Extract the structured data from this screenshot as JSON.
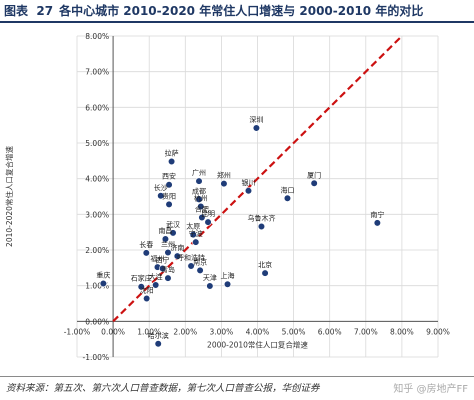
{
  "header": {
    "figure_label": "图表  27",
    "title": "各中心城市 2010-2020 年常住人口增速与 2000-2010 年的对比"
  },
  "footer": {
    "source": "资料来源：第五次、第六次人口普查数据，第七次人口普查公报，华创证券"
  },
  "watermark": "知乎 @房地产FF",
  "colors": {
    "point": "#1f3c78",
    "diagonal": "#cc1111",
    "title": "#1f3864",
    "grid": "#d9d9d9"
  },
  "chart_data": {
    "type": "scatter",
    "xlabel": "2000-2010常住人口复合增速",
    "ylabel": "2010-2020常住人口复合增速",
    "xlim": [
      -1.0,
      9.0
    ],
    "ylim": [
      -1.0,
      8.0
    ],
    "x_ticks": [
      "-1.00%",
      "0.00%",
      "1.00%",
      "2.00%",
      "3.00%",
      "4.00%",
      "5.00%",
      "6.00%",
      "7.00%",
      "8.00%",
      "9.00%"
    ],
    "y_ticks": [
      "-1.00%",
      "0.00%",
      "1.00%",
      "2.00%",
      "3.00%",
      "4.00%",
      "5.00%",
      "6.00%",
      "7.00%",
      "8.00%"
    ],
    "grid": true,
    "legend": "none",
    "reference_line": "y = x (dashed)",
    "points": [
      {
        "label": "深圳",
        "x": 3.97,
        "y": 5.42
      },
      {
        "label": "拉萨",
        "x": 1.62,
        "y": 4.48
      },
      {
        "label": "广州",
        "x": 2.38,
        "y": 3.93
      },
      {
        "label": "郑州",
        "x": 3.07,
        "y": 3.86
      },
      {
        "label": "厦门",
        "x": 5.57,
        "y": 3.87
      },
      {
        "label": "海口",
        "x": 4.83,
        "y": 3.45
      },
      {
        "label": "西安",
        "x": 1.55,
        "y": 3.83
      },
      {
        "label": "长沙",
        "x": 1.32,
        "y": 3.52
      },
      {
        "label": "贵阳",
        "x": 1.55,
        "y": 3.28
      },
      {
        "label": "成都",
        "x": 2.38,
        "y": 3.42
      },
      {
        "label": "杭州",
        "x": 2.43,
        "y": 3.22
      },
      {
        "label": "银川",
        "x": 3.75,
        "y": 3.66
      },
      {
        "label": "南宁",
        "x": 7.32,
        "y": 2.76
      },
      {
        "label": "合肥",
        "x": 2.46,
        "y": 2.91
      },
      {
        "label": "昆明",
        "x": 2.63,
        "y": 2.78
      },
      {
        "label": "乌鲁木齐",
        "x": 4.11,
        "y": 2.66
      },
      {
        "label": "武汉",
        "x": 1.66,
        "y": 2.48
      },
      {
        "label": "南昌",
        "x": 1.45,
        "y": 2.31
      },
      {
        "label": "太原",
        "x": 2.22,
        "y": 2.43
      },
      {
        "label": "宁波",
        "x": 2.29,
        "y": 2.22
      },
      {
        "label": "长春",
        "x": 0.92,
        "y": 1.92
      },
      {
        "label": "兰州",
        "x": 1.52,
        "y": 1.93
      },
      {
        "label": "济南",
        "x": 1.78,
        "y": 1.83
      },
      {
        "label": "呼和浩特",
        "x": 2.16,
        "y": 1.55
      },
      {
        "label": "南京",
        "x": 2.41,
        "y": 1.43
      },
      {
        "label": "北京",
        "x": 4.21,
        "y": 1.35
      },
      {
        "label": "福州",
        "x": 1.23,
        "y": 1.52
      },
      {
        "label": "西宁",
        "x": 1.37,
        "y": 1.48
      },
      {
        "label": "青岛",
        "x": 1.52,
        "y": 1.21
      },
      {
        "label": "重庆",
        "x": -0.27,
        "y": 1.06
      },
      {
        "label": "石家庄",
        "x": 0.78,
        "y": 0.97
      },
      {
        "label": "天津",
        "x": 2.68,
        "y": 0.99
      },
      {
        "label": "上海",
        "x": 3.17,
        "y": 1.04
      },
      {
        "label": "大连",
        "x": 1.18,
        "y": 1.02
      },
      {
        "label": "沈阳",
        "x": 0.93,
        "y": 0.64
      },
      {
        "label": "哈尔滨",
        "x": 1.25,
        "y": -0.63
      }
    ]
  }
}
